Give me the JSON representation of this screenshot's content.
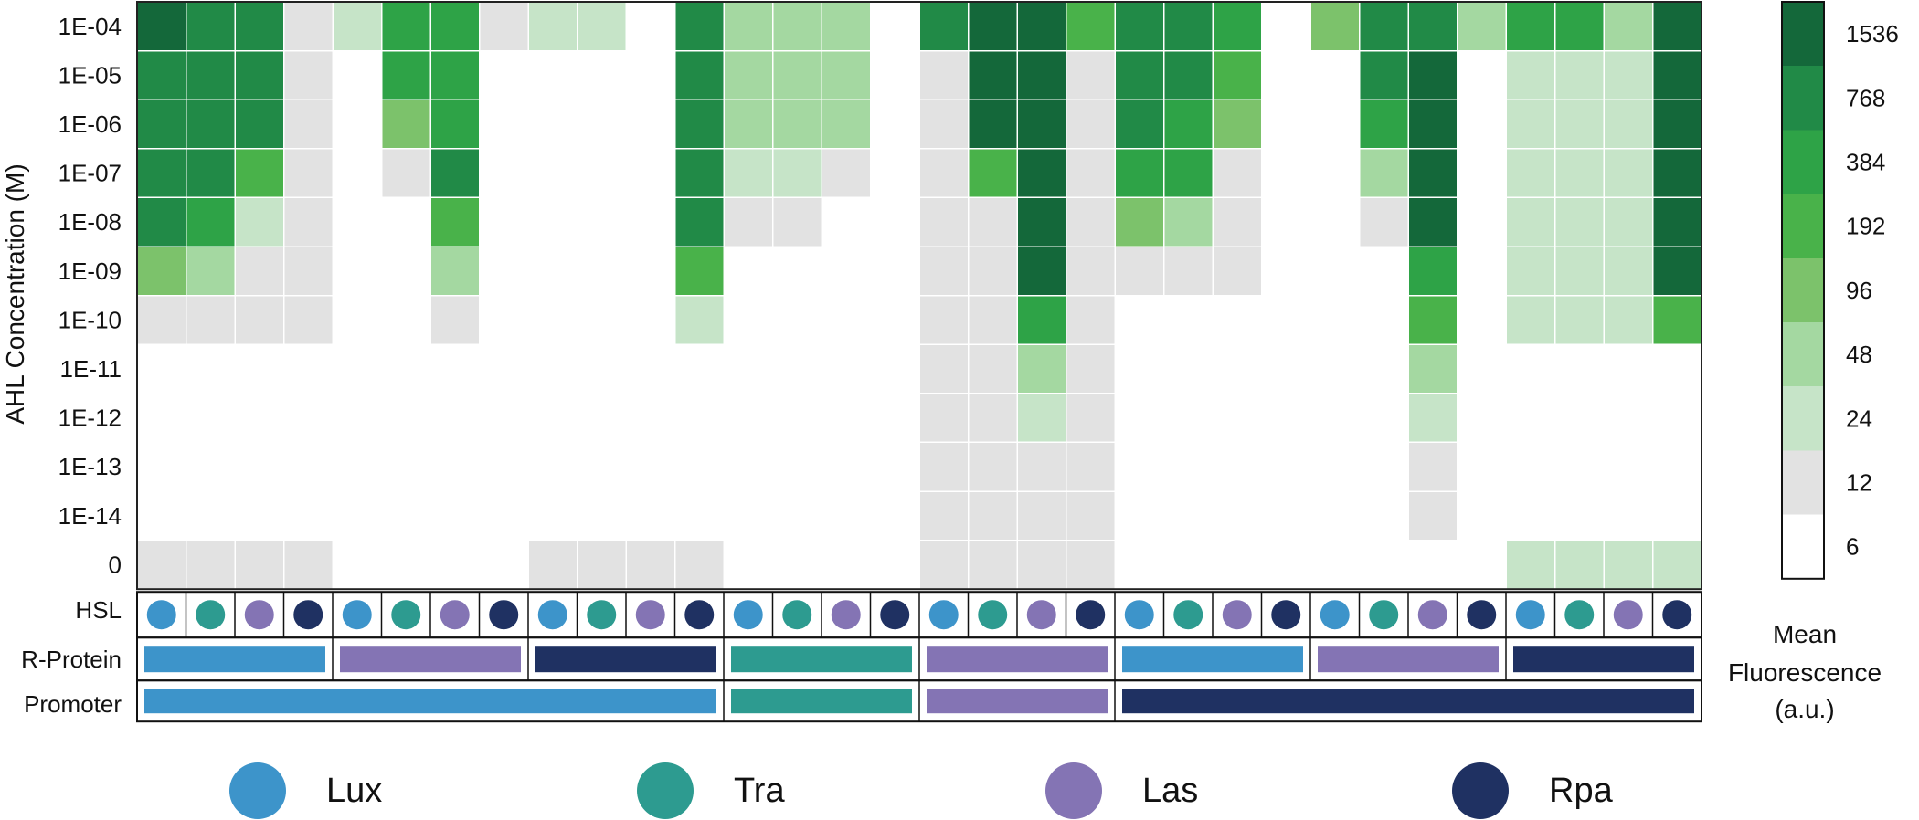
{
  "chart_data": {
    "type": "heatmap",
    "ylabel": "AHL Concentration (M)",
    "y_categories": [
      "1E-04",
      "1E-05",
      "1E-06",
      "1E-07",
      "1E-08",
      "1E-09",
      "1E-10",
      "1E-11",
      "1E-12",
      "1E-13",
      "1E-14",
      "0"
    ],
    "columns": 32,
    "row_labels": {
      "hsl": "HSL",
      "r_protein": "R-Protein",
      "promoter": "Promoter"
    },
    "legend_colors": {
      "Lux": "#3d94ca",
      "Tra": "#2d9b90",
      "Las": "#8474b4",
      "Rpa": "#1f3162"
    },
    "colorbar": {
      "title": [
        "Mean",
        "Fluorescence",
        "(a.u.)"
      ],
      "ticks": [
        "1536",
        "768",
        "384",
        "192",
        "96",
        "48",
        "24",
        "12",
        "6"
      ],
      "bin_colors": [
        "#ffffff",
        "#e2e2e2",
        "#c6e4c8",
        "#a4d8a1",
        "#7cc26b",
        "#49b24a",
        "#2ea347",
        "#218a47",
        "#14683a"
      ]
    },
    "hsl": [
      "Lux",
      "Tra",
      "Las",
      "Rpa",
      "Lux",
      "Tra",
      "Las",
      "Rpa",
      "Lux",
      "Tra",
      "Las",
      "Rpa",
      "Lux",
      "Tra",
      "Las",
      "Rpa",
      "Lux",
      "Tra",
      "Las",
      "Rpa",
      "Lux",
      "Tra",
      "Las",
      "Rpa",
      "Lux",
      "Tra",
      "Las",
      "Rpa",
      "Lux",
      "Tra",
      "Las",
      "Rpa"
    ],
    "r_protein": [
      {
        "name": "Lux",
        "start": 0,
        "end": 4
      },
      {
        "name": "Las",
        "start": 4,
        "end": 8
      },
      {
        "name": "Rpa",
        "start": 8,
        "end": 12
      },
      {
        "name": "Tra",
        "start": 12,
        "end": 16
      },
      {
        "name": "Las",
        "start": 16,
        "end": 20
      },
      {
        "name": "Lux",
        "start": 20,
        "end": 24
      },
      {
        "name": "Las",
        "start": 24,
        "end": 28
      },
      {
        "name": "Rpa",
        "start": 28,
        "end": 32
      }
    ],
    "promoter": [
      {
        "name": "Lux",
        "start": 0,
        "end": 12
      },
      {
        "name": "Tra",
        "start": 12,
        "end": 16
      },
      {
        "name": "Las",
        "start": 16,
        "end": 20
      },
      {
        "name": "Rpa",
        "start": 20,
        "end": 32
      }
    ],
    "legend": [
      "Lux",
      "Tra",
      "Las",
      "Rpa"
    ],
    "values": [
      [
        1000,
        700,
        600,
        10,
        24,
        350,
        380,
        10,
        24,
        24,
        6,
        550,
        40,
        40,
        40,
        0,
        400,
        1400,
        1400,
        110,
        500,
        500,
        280,
        6,
        80,
        600,
        750,
        30,
        250,
        200,
        45,
        900
      ],
      [
        750,
        750,
        600,
        10,
        6,
        300,
        380,
        6,
        6,
        6,
        6,
        500,
        40,
        40,
        45,
        0,
        12,
        1400,
        1500,
        12,
        600,
        750,
        110,
        6,
        6,
        700,
        900,
        6,
        20,
        20,
        20,
        800
      ],
      [
        750,
        750,
        500,
        10,
        6,
        80,
        350,
        6,
        6,
        6,
        6,
        500,
        40,
        40,
        35,
        0,
        12,
        1400,
        1500,
        12,
        700,
        380,
        55,
        6,
        6,
        350,
        900,
        6,
        14,
        14,
        14,
        800
      ],
      [
        550,
        500,
        100,
        10,
        6,
        12,
        400,
        6,
        6,
        6,
        6,
        500,
        20,
        20,
        10,
        0,
        12,
        100,
        1500,
        12,
        300,
        350,
        12,
        6,
        6,
        30,
        800,
        6,
        14,
        14,
        14,
        800
      ],
      [
        500,
        320,
        24,
        10,
        6,
        6,
        100,
        6,
        6,
        6,
        6,
        500,
        8,
        8,
        0,
        0,
        12,
        12,
        1500,
        12,
        80,
        30,
        8,
        6,
        6,
        8,
        800,
        6,
        14,
        14,
        14,
        800
      ],
      [
        70,
        30,
        12,
        10,
        6,
        6,
        40,
        6,
        0,
        0,
        0,
        130,
        0,
        0,
        0,
        0,
        12,
        12,
        900,
        12,
        10,
        8,
        8,
        6,
        6,
        6,
        350,
        6,
        14,
        14,
        14,
        800
      ],
      [
        12,
        10,
        10,
        10,
        6,
        6,
        12,
        6,
        6,
        6,
        6,
        24,
        0,
        0,
        0,
        0,
        12,
        12,
        220,
        12,
        6,
        6,
        6,
        6,
        6,
        6,
        110,
        6,
        14,
        14,
        14,
        110
      ],
      [
        0,
        0,
        0,
        0,
        6,
        6,
        6,
        6,
        0,
        0,
        0,
        0,
        0,
        0,
        0,
        0,
        12,
        12,
        30,
        12,
        0,
        0,
        0,
        0,
        6,
        6,
        30,
        6,
        0,
        0,
        0,
        0
      ],
      [
        0,
        0,
        0,
        0,
        6,
        6,
        6,
        6,
        0,
        0,
        0,
        0,
        0,
        0,
        0,
        0,
        12,
        12,
        13,
        12,
        0,
        0,
        0,
        0,
        6,
        6,
        13,
        6,
        0,
        0,
        0,
        0
      ],
      [
        0,
        0,
        0,
        0,
        6,
        6,
        6,
        6,
        0,
        0,
        0,
        0,
        0,
        0,
        0,
        0,
        12,
        12,
        12,
        12,
        0,
        0,
        0,
        0,
        6,
        6,
        12,
        6,
        0,
        0,
        0,
        0
      ],
      [
        0,
        0,
        0,
        0,
        6,
        6,
        6,
        6,
        0,
        0,
        0,
        0,
        0,
        0,
        0,
        0,
        12,
        12,
        12,
        12,
        0,
        0,
        0,
        0,
        6,
        6,
        10,
        6,
        0,
        0,
        0,
        0
      ],
      [
        10,
        10,
        10,
        10,
        6,
        6,
        6,
        6,
        8,
        8,
        8,
        8,
        0,
        0,
        0,
        0,
        12,
        12,
        12,
        12,
        6,
        6,
        6,
        6,
        6,
        6,
        6,
        6,
        16,
        16,
        16,
        16
      ]
    ]
  }
}
